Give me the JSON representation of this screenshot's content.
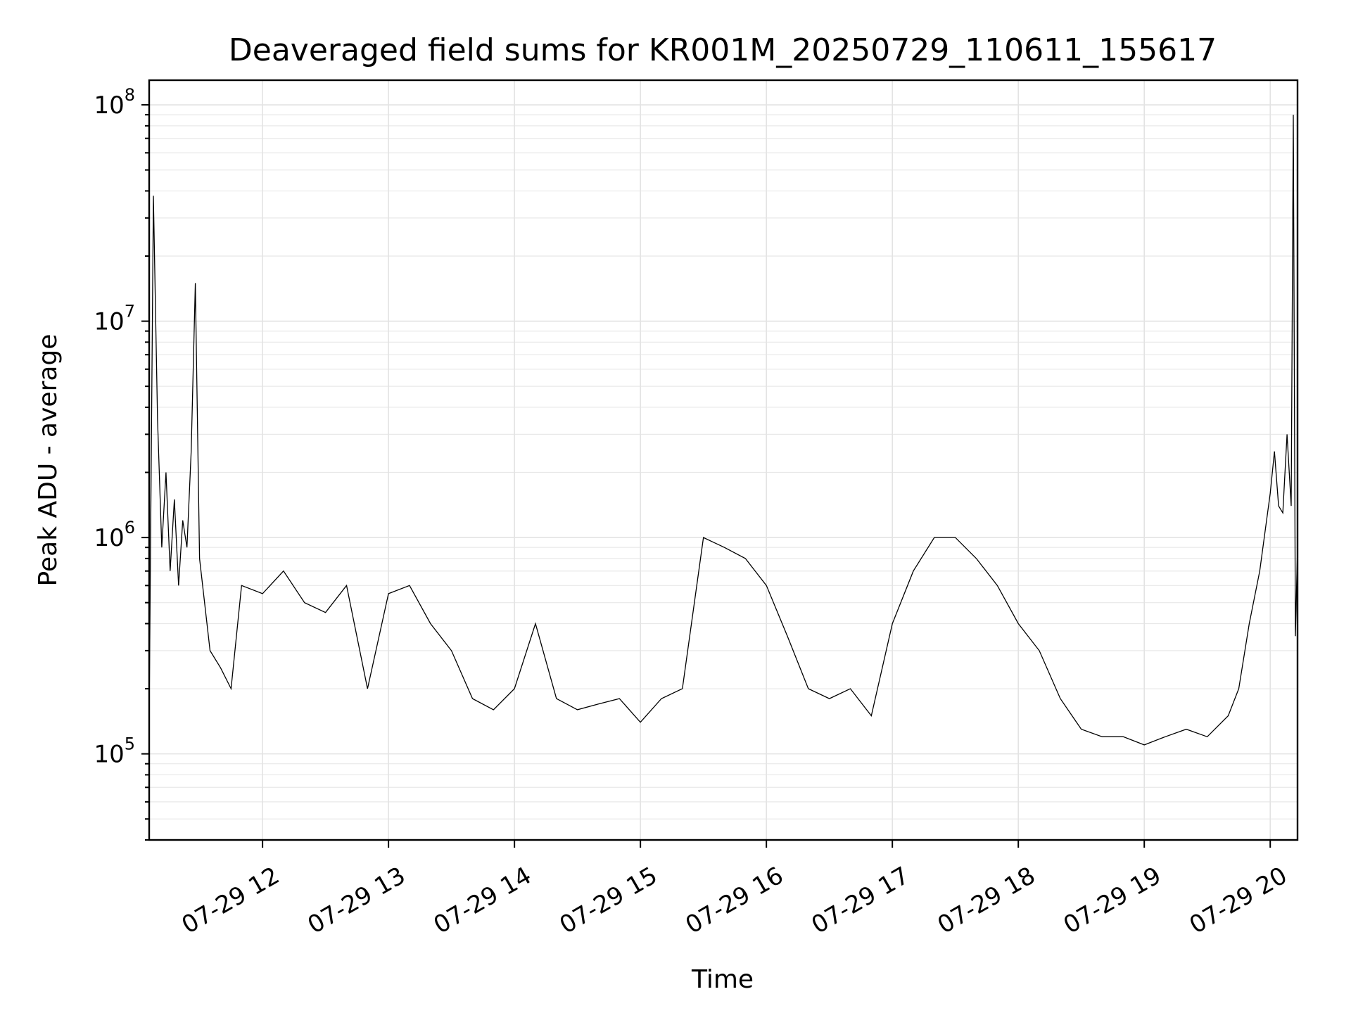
{
  "chart_data": {
    "type": "line",
    "title": "Deaveraged field sums for KR001M_20250729_110611_155617",
    "xlabel": "Time",
    "ylabel": "Peak ADU - average",
    "xlim": [
      "2025-07-29T11:06",
      "2025-07-29T20:13"
    ],
    "ylim": [
      40000,
      130000000
    ],
    "yscale": "log",
    "grid": true,
    "x_ticks": [
      {
        "t": "2025-07-29T12:00",
        "label": "07-29 12"
      },
      {
        "t": "2025-07-29T13:00",
        "label": "07-29 13"
      },
      {
        "t": "2025-07-29T14:00",
        "label": "07-29 14"
      },
      {
        "t": "2025-07-29T15:00",
        "label": "07-29 15"
      },
      {
        "t": "2025-07-29T16:00",
        "label": "07-29 16"
      },
      {
        "t": "2025-07-29T17:00",
        "label": "07-29 17"
      },
      {
        "t": "2025-07-29T18:00",
        "label": "07-29 18"
      },
      {
        "t": "2025-07-29T19:00",
        "label": "07-29 19"
      },
      {
        "t": "2025-07-29T20:00",
        "label": "07-29 20"
      }
    ],
    "y_ticks": [
      {
        "value": 100000,
        "base": "10",
        "exp": "5"
      },
      {
        "value": 1000000,
        "base": "10",
        "exp": "6"
      },
      {
        "value": 10000000,
        "base": "10",
        "exp": "7"
      },
      {
        "value": 100000000,
        "base": "10",
        "exp": "8"
      }
    ],
    "series": [
      {
        "color": "#000000",
        "x": [
          "2025-07-29T11:06",
          "2025-07-29T11:08",
          "2025-07-29T11:10",
          "2025-07-29T11:12",
          "2025-07-29T11:14",
          "2025-07-29T11:16",
          "2025-07-29T11:18",
          "2025-07-29T11:20",
          "2025-07-29T11:22",
          "2025-07-29T11:24",
          "2025-07-29T11:26",
          "2025-07-29T11:28",
          "2025-07-29T11:30",
          "2025-07-29T11:35",
          "2025-07-29T11:40",
          "2025-07-29T11:45",
          "2025-07-29T11:50",
          "2025-07-29T12:00",
          "2025-07-29T12:10",
          "2025-07-29T12:20",
          "2025-07-29T12:30",
          "2025-07-29T12:40",
          "2025-07-29T12:50",
          "2025-07-29T13:00",
          "2025-07-29T13:10",
          "2025-07-29T13:20",
          "2025-07-29T13:30",
          "2025-07-29T13:40",
          "2025-07-29T13:50",
          "2025-07-29T14:00",
          "2025-07-29T14:10",
          "2025-07-29T14:20",
          "2025-07-29T14:30",
          "2025-07-29T14:40",
          "2025-07-29T14:50",
          "2025-07-29T15:00",
          "2025-07-29T15:10",
          "2025-07-29T15:20",
          "2025-07-29T15:30",
          "2025-07-29T15:40",
          "2025-07-29T15:50",
          "2025-07-29T16:00",
          "2025-07-29T16:10",
          "2025-07-29T16:20",
          "2025-07-29T16:30",
          "2025-07-29T16:40",
          "2025-07-29T16:50",
          "2025-07-29T17:00",
          "2025-07-29T17:10",
          "2025-07-29T17:20",
          "2025-07-29T17:30",
          "2025-07-29T17:40",
          "2025-07-29T17:50",
          "2025-07-29T18:00",
          "2025-07-29T18:10",
          "2025-07-29T18:20",
          "2025-07-29T18:30",
          "2025-07-29T18:40",
          "2025-07-29T18:50",
          "2025-07-29T19:00",
          "2025-07-29T19:10",
          "2025-07-29T19:20",
          "2025-07-29T19:30",
          "2025-07-29T19:40",
          "2025-07-29T19:45",
          "2025-07-29T19:50",
          "2025-07-29T19:55",
          "2025-07-29T20:00",
          "2025-07-29T20:02",
          "2025-07-29T20:04",
          "2025-07-29T20:06",
          "2025-07-29T20:08",
          "2025-07-29T20:10",
          "2025-07-29T20:11",
          "2025-07-29T20:12",
          "2025-07-29T20:13"
        ],
        "y": [
          150000,
          38000000,
          3500000,
          900000,
          2000000,
          700000,
          1500000,
          600000,
          1200000,
          900000,
          2500000,
          15000000,
          800000,
          300000,
          250000,
          200000,
          600000,
          550000,
          700000,
          500000,
          450000,
          600000,
          200000,
          550000,
          600000,
          400000,
          300000,
          180000,
          160000,
          200000,
          400000,
          180000,
          160000,
          170000,
          180000,
          140000,
          180000,
          200000,
          1000000,
          900000,
          800000,
          600000,
          350000,
          200000,
          180000,
          200000,
          150000,
          400000,
          700000,
          1000000,
          1000000,
          800000,
          600000,
          400000,
          300000,
          180000,
          130000,
          120000,
          120000,
          110000,
          120000,
          130000,
          120000,
          150000,
          200000,
          400000,
          700000,
          1600000,
          2500000,
          1400000,
          1300000,
          3000000,
          1400000,
          90000000,
          350000,
          900000
        ]
      }
    ]
  }
}
